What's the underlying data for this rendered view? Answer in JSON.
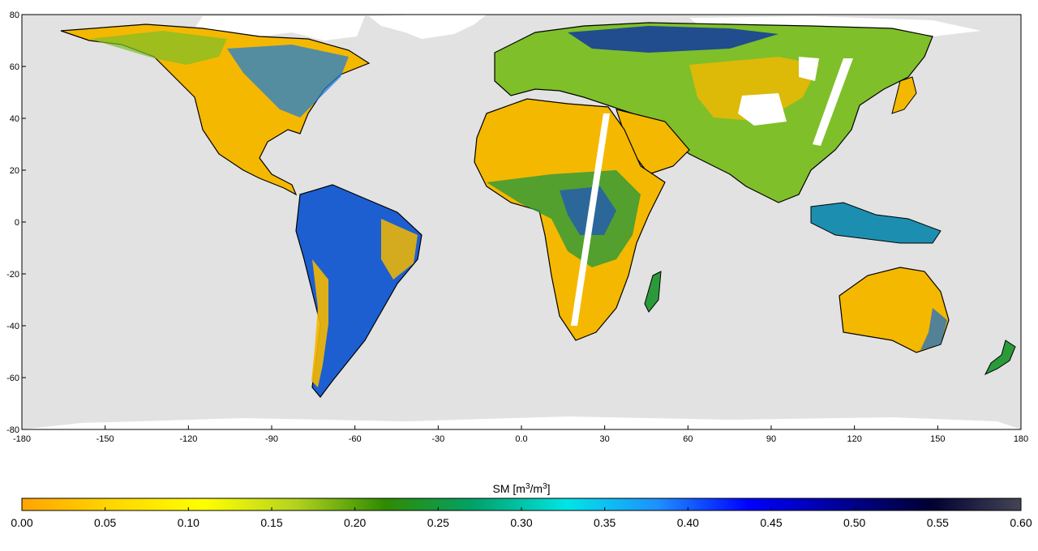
{
  "map": {
    "ocean_color": "#e2e2e2",
    "nodata_color": "#ffffff",
    "coastline_color": "#000000",
    "x_ticks": [
      "-180",
      "-150",
      "-120",
      "-90",
      "-60",
      "-30",
      "0.0",
      "30",
      "60",
      "90",
      "120",
      "150",
      "180"
    ],
    "y_ticks": [
      "80",
      "60",
      "40",
      "20",
      "0",
      "-20",
      "-40",
      "-60",
      "-80"
    ],
    "xlim": [
      -180,
      180
    ],
    "ylim": [
      -80,
      80
    ]
  },
  "colorbar": {
    "title_main": "SM [m",
    "title_sup1": "3",
    "title_mid": "/m",
    "title_sup2": "3",
    "title_end": "]",
    "range": [
      0,
      0.6
    ],
    "ticks": [
      "0.00",
      "0.05",
      "0.10",
      "0.15",
      "0.20",
      "0.25",
      "0.30",
      "0.35",
      "0.40",
      "0.45",
      "0.50",
      "0.55",
      "0.60"
    ],
    "stops": [
      "#ffa500",
      "#ffd700",
      "#ffff00",
      "#b5d31f",
      "#2e8b00",
      "#00a36b",
      "#00e5e5",
      "#1e90ff",
      "#0000ff",
      "#000099",
      "#000033",
      "#444455"
    ]
  }
}
